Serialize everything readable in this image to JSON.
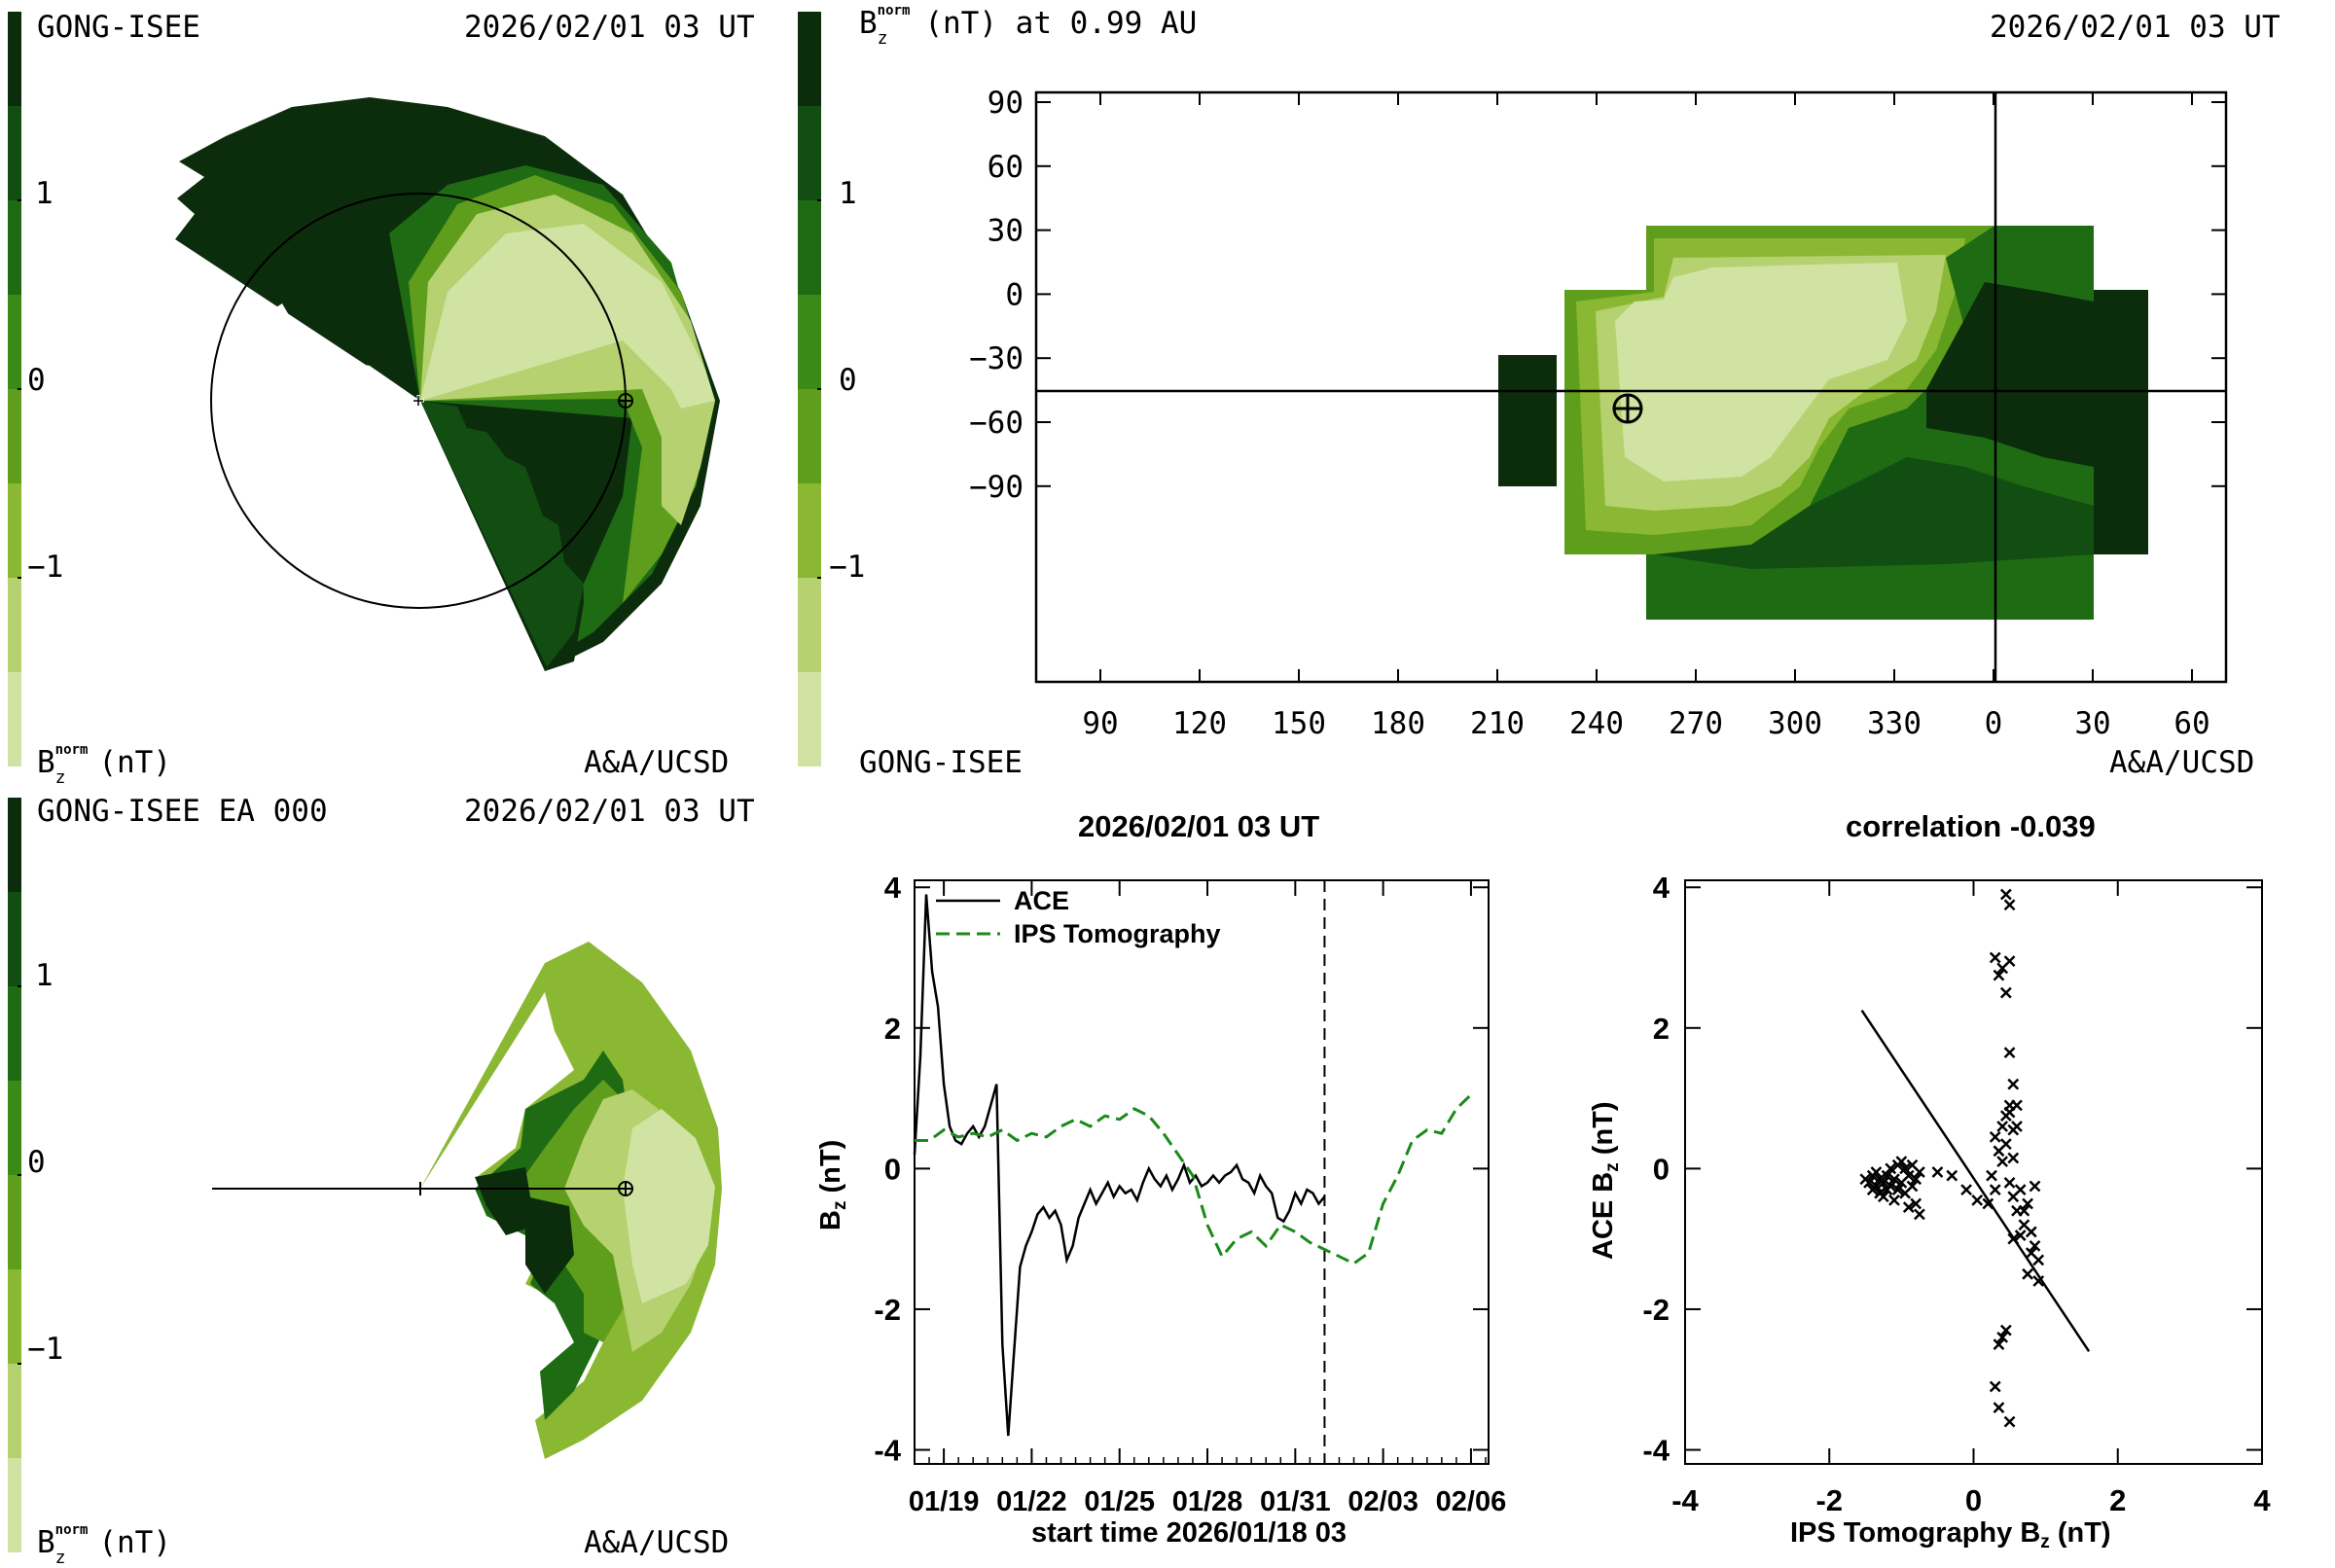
{
  "colors": {
    "scale": [
      "#0c2d0c",
      "#124d12",
      "#1f6b14",
      "#398a17",
      "#5f9e1c",
      "#8ab832",
      "#b6d16f",
      "#d0e3a2"
    ],
    "dashed_series": "#1a8a1a",
    "solid_series": "#000000"
  },
  "panel_ecliptic": {
    "top_left": "GONG-ISEE",
    "top_right": "2026/02/01 03 UT",
    "bottom_left_main": "B",
    "bottom_left_sub": "z",
    "bottom_left_sup": "norm",
    "bottom_left_unit": "(nT)",
    "bottom_right": "A&A/UCSD",
    "colorbar_ticks": [
      "1",
      "0",
      "−1"
    ],
    "observer_icon": "earth-symbol-icon",
    "sun_icon": "sun-plus-icon"
  },
  "panel_meridional": {
    "top_left": "GONG-ISEE EA 000",
    "top_right": "2026/02/01 03 UT",
    "bottom_left_main": "B",
    "bottom_left_sub": "z",
    "bottom_left_sup": "norm",
    "bottom_left_unit": "(nT)",
    "bottom_right": "A&A/UCSD",
    "colorbar_ticks": [
      "1",
      "0",
      "−1"
    ],
    "observer_icon": "earth-symbol-icon"
  },
  "panel_map": {
    "title_main": "B",
    "title_sub": "z",
    "title_sup": "norm",
    "title_rest": "(nT) at 0.99 AU",
    "top_right": "2026/02/01 03 UT",
    "bottom_left": "GONG-ISEE",
    "bottom_right": "A&A/UCSD",
    "colorbar_ticks": [
      "1",
      "0",
      "−1"
    ],
    "y_ticks": [
      "90",
      "60",
      "30",
      "0",
      "−30",
      "−60",
      "−90"
    ],
    "x_ticks": [
      "90",
      "120",
      "150",
      "180",
      "210",
      "240",
      "270",
      "300",
      "330",
      "0",
      "30",
      "60"
    ],
    "observer_icon": "earth-symbol-icon"
  },
  "chart_data": [
    {
      "type": "line",
      "title": "2026/02/01 03 UT",
      "xlabel": "start time 2026/01/18 03",
      "ylabel_main": "B",
      "ylabel_sub": "z",
      "ylabel_unit": "(nT)",
      "xlim": [
        0,
        19.6
      ],
      "ylim": [
        -4.2,
        4.1
      ],
      "x_ticks": [
        {
          "day": 1,
          "label": "01/19"
        },
        {
          "day": 4,
          "label": "01/22"
        },
        {
          "day": 7,
          "label": "01/25"
        },
        {
          "day": 10,
          "label": "01/28"
        },
        {
          "day": 13,
          "label": "01/31"
        },
        {
          "day": 16,
          "label": "02/03"
        },
        {
          "day": 19,
          "label": "02/06"
        }
      ],
      "y_ticks": [
        4,
        2,
        0,
        -2,
        -4
      ],
      "now_day": 14.0,
      "series": [
        {
          "name": "ACE",
          "style": "solid",
          "x": [
            0.0,
            0.2,
            0.4,
            0.6,
            0.8,
            1.0,
            1.2,
            1.4,
            1.6,
            1.8,
            2.0,
            2.2,
            2.4,
            2.6,
            2.8,
            3.0,
            3.2,
            3.4,
            3.6,
            3.8,
            4.0,
            4.2,
            4.4,
            4.6,
            4.8,
            5.0,
            5.2,
            5.4,
            5.6,
            5.8,
            6.0,
            6.2,
            6.4,
            6.6,
            6.8,
            7.0,
            7.2,
            7.4,
            7.6,
            7.8,
            8.0,
            8.2,
            8.4,
            8.6,
            8.8,
            9.0,
            9.2,
            9.4,
            9.6,
            9.8,
            10.0,
            10.2,
            10.4,
            10.6,
            10.8,
            11.0,
            11.2,
            11.4,
            11.6,
            11.8,
            12.0,
            12.2,
            12.4,
            12.6,
            12.8,
            13.0,
            13.2,
            13.4,
            13.6,
            13.8,
            14.0
          ],
          "values": [
            0.2,
            1.6,
            3.9,
            2.8,
            2.3,
            1.2,
            0.6,
            0.4,
            0.35,
            0.5,
            0.6,
            0.45,
            0.6,
            0.9,
            1.2,
            -2.5,
            -3.8,
            -2.6,
            -1.4,
            -1.1,
            -0.9,
            -0.65,
            -0.55,
            -0.7,
            -0.6,
            -0.8,
            -1.3,
            -1.1,
            -0.7,
            -0.5,
            -0.3,
            -0.5,
            -0.35,
            -0.2,
            -0.4,
            -0.25,
            -0.35,
            -0.3,
            -0.45,
            -0.2,
            0.0,
            -0.15,
            -0.25,
            -0.1,
            -0.3,
            -0.15,
            0.05,
            -0.2,
            -0.1,
            -0.25,
            -0.2,
            -0.1,
            -0.2,
            -0.1,
            -0.05,
            0.05,
            -0.15,
            -0.2,
            -0.35,
            -0.1,
            -0.25,
            -0.35,
            -0.7,
            -0.75,
            -0.6,
            -0.35,
            -0.5,
            -0.3,
            -0.35,
            -0.5,
            -0.4
          ]
        },
        {
          "name": "IPS Tomography",
          "style": "dashed",
          "x": [
            0.0,
            0.5,
            1.0,
            1.5,
            2.0,
            2.5,
            3.0,
            3.5,
            4.0,
            4.5,
            5.0,
            5.5,
            6.0,
            6.5,
            7.0,
            7.5,
            8.0,
            8.5,
            9.0,
            9.5,
            10.0,
            10.5,
            11.0,
            11.5,
            12.0,
            12.5,
            13.0,
            13.5,
            14.0,
            14.5,
            15.0,
            15.5,
            16.0,
            16.5,
            17.0,
            17.5,
            18.0,
            18.5,
            19.0
          ],
          "values": [
            0.4,
            0.4,
            0.55,
            0.45,
            0.5,
            0.45,
            0.55,
            0.4,
            0.5,
            0.45,
            0.6,
            0.7,
            0.6,
            0.75,
            0.7,
            0.85,
            0.75,
            0.5,
            0.2,
            -0.1,
            -0.8,
            -1.25,
            -1.0,
            -0.9,
            -1.1,
            -0.8,
            -0.9,
            -1.05,
            -1.15,
            -1.25,
            -1.35,
            -1.2,
            -0.5,
            -0.1,
            0.4,
            0.55,
            0.5,
            0.85,
            1.05
          ]
        }
      ],
      "legend": "top-left"
    },
    {
      "type": "scatter",
      "title": "correlation -0.039",
      "xlabel_main": "IPS Tomography B",
      "xlabel_sub": "z",
      "xlabel_unit": "(nT)",
      "ylabel_main": "ACE B",
      "ylabel_sub": "z",
      "ylabel_unit": "(nT)",
      "xlim": [
        -4,
        4
      ],
      "ylim": [
        -4.2,
        4.1
      ],
      "x_ticks": [
        -4,
        -2,
        0,
        2,
        4
      ],
      "y_ticks": [
        4,
        2,
        0,
        -2,
        -4
      ],
      "fit_line": {
        "x": [
          -1.55,
          1.6
        ],
        "y": [
          2.25,
          -2.6
        ]
      },
      "points": [
        [
          -1.5,
          -0.15
        ],
        [
          -1.45,
          -0.2
        ],
        [
          -1.4,
          -0.1
        ],
        [
          -1.4,
          -0.3
        ],
        [
          -1.35,
          -0.05
        ],
        [
          -1.35,
          -0.25
        ],
        [
          -1.3,
          -0.15
        ],
        [
          -1.3,
          -0.35
        ],
        [
          -1.25,
          -0.2
        ],
        [
          -1.25,
          -0.4
        ],
        [
          -1.2,
          -0.1
        ],
        [
          -1.2,
          -0.3
        ],
        [
          -1.15,
          0.0
        ],
        [
          -1.15,
          -0.25
        ],
        [
          -1.1,
          -0.15
        ],
        [
          -1.1,
          -0.45
        ],
        [
          -1.05,
          0.05
        ],
        [
          -1.05,
          -0.3
        ],
        [
          -1.0,
          0.1
        ],
        [
          -1.0,
          -0.2
        ],
        [
          -0.95,
          0.0
        ],
        [
          -0.95,
          -0.35
        ],
        [
          -0.9,
          -0.1
        ],
        [
          -0.9,
          -0.55
        ],
        [
          -0.85,
          0.05
        ],
        [
          -0.85,
          -0.25
        ],
        [
          -0.8,
          -0.5
        ],
        [
          -0.8,
          -0.15
        ],
        [
          -0.75,
          -0.65
        ],
        [
          -0.75,
          -0.05
        ],
        [
          -0.5,
          -0.05
        ],
        [
          -0.3,
          -0.1
        ],
        [
          -0.1,
          -0.3
        ],
        [
          0.05,
          -0.45
        ],
        [
          0.2,
          -0.5
        ],
        [
          0.3,
          -0.3
        ],
        [
          0.25,
          -0.1
        ],
        [
          0.3,
          3.0
        ],
        [
          0.35,
          2.75
        ],
        [
          0.4,
          2.85
        ],
        [
          0.45,
          3.9
        ],
        [
          0.5,
          3.75
        ],
        [
          0.5,
          2.95
        ],
        [
          0.45,
          2.5
        ],
        [
          0.5,
          1.65
        ],
        [
          0.55,
          1.2
        ],
        [
          0.5,
          0.9
        ],
        [
          0.45,
          0.75
        ],
        [
          0.4,
          0.6
        ],
        [
          0.45,
          0.35
        ],
        [
          0.5,
          0.8
        ],
        [
          0.55,
          0.55
        ],
        [
          0.6,
          0.9
        ],
        [
          0.4,
          0.1
        ],
        [
          0.35,
          0.25
        ],
        [
          0.3,
          0.45
        ],
        [
          0.55,
          0.15
        ],
        [
          0.6,
          0.6
        ],
        [
          0.5,
          -0.2
        ],
        [
          0.55,
          -0.4
        ],
        [
          0.6,
          -0.6
        ],
        [
          0.65,
          -0.3
        ],
        [
          0.7,
          -0.8
        ],
        [
          0.75,
          -0.5
        ],
        [
          0.8,
          -0.9
        ],
        [
          0.85,
          -1.1
        ],
        [
          0.9,
          -1.3
        ],
        [
          0.75,
          -1.5
        ],
        [
          0.8,
          -1.2
        ],
        [
          0.7,
          -0.6
        ],
        [
          0.85,
          -0.25
        ],
        [
          0.65,
          -0.95
        ],
        [
          0.9,
          -1.6
        ],
        [
          0.4,
          -2.4
        ],
        [
          0.35,
          -2.5
        ],
        [
          0.3,
          -3.1
        ],
        [
          0.45,
          -2.3
        ],
        [
          0.5,
          -3.6
        ],
        [
          0.35,
          -3.4
        ],
        [
          0.55,
          -1.0
        ]
      ]
    }
  ]
}
